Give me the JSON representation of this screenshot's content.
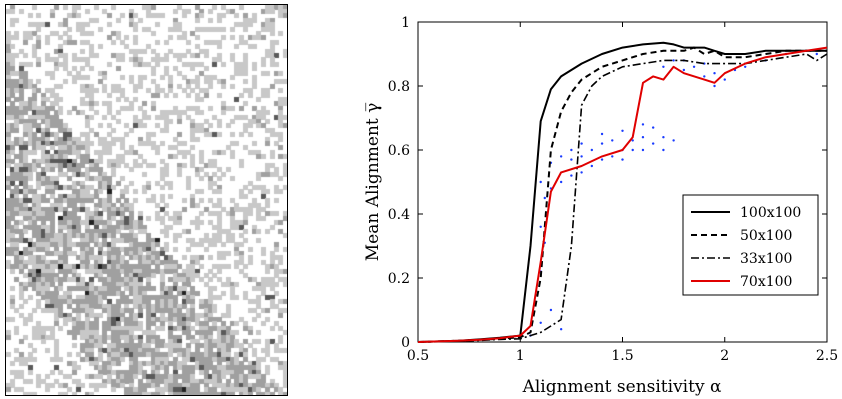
{
  "lattice": {
    "colors": {
      "empty": "#ffffff",
      "light": "#c8c8c8",
      "mid": "#a0a0a0",
      "dark": "#5a5a5a",
      "black": "#222222"
    },
    "stripe_description": "diagonal banded pattern of grey cells"
  },
  "chart_data": {
    "type": "line",
    "xlabel": "Alignment sensitivity α",
    "ylabel": "Mean Alignment γ̅",
    "xlim": [
      0.5,
      2.5
    ],
    "ylim": [
      0,
      1
    ],
    "x_ticks": [
      "0.5",
      "1",
      "1.5",
      "2",
      "2.5"
    ],
    "y_ticks": [
      "0",
      "0.2",
      "0.4",
      "0.6",
      "0.8",
      "1"
    ],
    "grid": false,
    "legend": "center-right",
    "series": [
      {
        "name": "100x100",
        "color": "#000000",
        "dash": "solid",
        "width": 2,
        "x": [
          0.5,
          0.6,
          0.7,
          0.8,
          0.9,
          1.0,
          1.05,
          1.1,
          1.15,
          1.2,
          1.3,
          1.4,
          1.5,
          1.6,
          1.7,
          1.75,
          1.8,
          1.85,
          1.9,
          1.95,
          2.0,
          2.1,
          2.2,
          2.3,
          2.4,
          2.5
        ],
        "y": [
          0,
          0.002,
          0.004,
          0.008,
          0.013,
          0.02,
          0.3,
          0.69,
          0.79,
          0.83,
          0.87,
          0.9,
          0.92,
          0.93,
          0.935,
          0.93,
          0.92,
          0.92,
          0.92,
          0.91,
          0.9,
          0.9,
          0.91,
          0.91,
          0.91,
          0.91
        ]
      },
      {
        "name": "50x100",
        "color": "#000000",
        "dash": "6,4",
        "width": 2,
        "x": [
          0.5,
          0.6,
          0.7,
          0.8,
          0.9,
          1.0,
          1.05,
          1.1,
          1.15,
          1.2,
          1.25,
          1.3,
          1.4,
          1.5,
          1.6,
          1.7,
          1.8,
          1.85,
          1.9,
          1.95,
          2.0,
          2.1,
          2.2,
          2.3,
          2.4,
          2.5
        ],
        "y": [
          0,
          0.002,
          0.004,
          0.007,
          0.01,
          0.015,
          0.03,
          0.2,
          0.6,
          0.72,
          0.78,
          0.82,
          0.86,
          0.88,
          0.9,
          0.91,
          0.91,
          0.92,
          0.9,
          0.91,
          0.89,
          0.89,
          0.9,
          0.91,
          0.91,
          0.91
        ]
      },
      {
        "name": "33x100",
        "color": "#000000",
        "dash": "8,3,2,3",
        "width": 1.6,
        "x": [
          0.5,
          0.6,
          0.7,
          0.8,
          0.9,
          1.0,
          1.1,
          1.2,
          1.25,
          1.3,
          1.35,
          1.4,
          1.5,
          1.6,
          1.7,
          1.8,
          1.9,
          2.0,
          2.1,
          2.2,
          2.3,
          2.4,
          2.45,
          2.5
        ],
        "y": [
          0,
          0.001,
          0.003,
          0.005,
          0.008,
          0.01,
          0.03,
          0.07,
          0.3,
          0.74,
          0.8,
          0.83,
          0.86,
          0.87,
          0.88,
          0.88,
          0.87,
          0.87,
          0.87,
          0.88,
          0.89,
          0.9,
          0.88,
          0.9
        ]
      },
      {
        "name": "70x100",
        "color": "#e00000",
        "dash": "solid",
        "width": 2,
        "x": [
          0.5,
          0.6,
          0.7,
          0.8,
          0.9,
          1.0,
          1.05,
          1.1,
          1.15,
          1.2,
          1.3,
          1.4,
          1.5,
          1.55,
          1.6,
          1.65,
          1.7,
          1.75,
          1.8,
          1.9,
          1.95,
          2.0,
          2.1,
          2.2,
          2.3,
          2.4,
          2.5
        ],
        "y": [
          0,
          0.002,
          0.004,
          0.007,
          0.012,
          0.02,
          0.05,
          0.25,
          0.47,
          0.53,
          0.55,
          0.58,
          0.6,
          0.64,
          0.81,
          0.83,
          0.82,
          0.86,
          0.84,
          0.82,
          0.81,
          0.84,
          0.87,
          0.89,
          0.9,
          0.91,
          0.92
        ]
      }
    ],
    "scatter_color": "#1a3cff",
    "scatter": [
      [
        1.05,
        0.02
      ],
      [
        1.1,
        0.06
      ],
      [
        1.1,
        0.22
      ],
      [
        1.1,
        0.36
      ],
      [
        1.1,
        0.5
      ],
      [
        1.12,
        0.31
      ],
      [
        1.12,
        0.45
      ],
      [
        1.15,
        0.1
      ],
      [
        1.15,
        0.48
      ],
      [
        1.15,
        0.56
      ],
      [
        1.2,
        0.04
      ],
      [
        1.2,
        0.5
      ],
      [
        1.2,
        0.58
      ],
      [
        1.25,
        0.52
      ],
      [
        1.25,
        0.57
      ],
      [
        1.25,
        0.6
      ],
      [
        1.3,
        0.53
      ],
      [
        1.3,
        0.58
      ],
      [
        1.3,
        0.62
      ],
      [
        1.35,
        0.55
      ],
      [
        1.35,
        0.6
      ],
      [
        1.4,
        0.57
      ],
      [
        1.4,
        0.62
      ],
      [
        1.4,
        0.65
      ],
      [
        1.45,
        0.58
      ],
      [
        1.45,
        0.63
      ],
      [
        1.5,
        0.57
      ],
      [
        1.5,
        0.6
      ],
      [
        1.5,
        0.66
      ],
      [
        1.55,
        0.6
      ],
      [
        1.55,
        0.63
      ],
      [
        1.6,
        0.6
      ],
      [
        1.6,
        0.64
      ],
      [
        1.6,
        0.68
      ],
      [
        1.65,
        0.62
      ],
      [
        1.65,
        0.67
      ],
      [
        1.7,
        0.6
      ],
      [
        1.7,
        0.64
      ],
      [
        1.7,
        0.86
      ],
      [
        1.75,
        0.63
      ],
      [
        1.75,
        0.88
      ],
      [
        1.8,
        0.85
      ],
      [
        1.8,
        0.88
      ],
      [
        1.85,
        0.86
      ],
      [
        1.9,
        0.83
      ],
      [
        1.9,
        0.87
      ],
      [
        1.95,
        0.8
      ],
      [
        1.95,
        0.84
      ],
      [
        2.0,
        0.82
      ],
      [
        2.05,
        0.85
      ],
      [
        2.1,
        0.86
      ],
      [
        2.2,
        0.88
      ],
      [
        2.3,
        0.9
      ],
      [
        2.4,
        0.91
      ],
      [
        2.45,
        0.9
      ]
    ]
  }
}
